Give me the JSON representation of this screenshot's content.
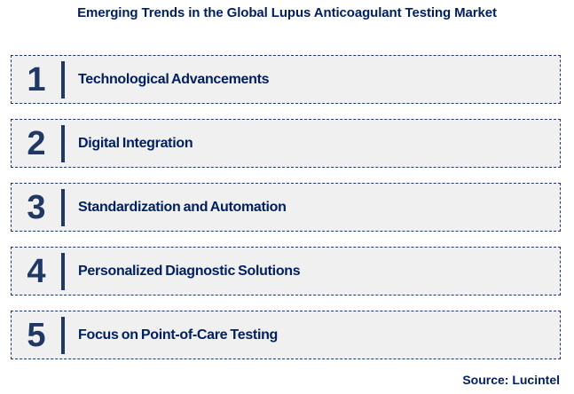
{
  "title": "Emerging Trends in the Global Lupus Anticoagulant Testing Market",
  "source": "Source: Lucintel",
  "colors": {
    "title_text": "#002060",
    "item_text": "#002060",
    "number_text": "#1f3864",
    "divider_bar": "#1f3864",
    "row_background": "#f0f0f0",
    "row_border": "#203864",
    "page_background": "#ffffff"
  },
  "items": [
    {
      "number": "1",
      "label": "Technological Advancements"
    },
    {
      "number": "2",
      "label": "Digital Integration"
    },
    {
      "number": "3",
      "label": "Standardization and Automation"
    },
    {
      "number": "4",
      "label": "Personalized Diagnostic Solutions"
    },
    {
      "number": "5",
      "label": "Focus on Point-of-Care Testing"
    }
  ]
}
